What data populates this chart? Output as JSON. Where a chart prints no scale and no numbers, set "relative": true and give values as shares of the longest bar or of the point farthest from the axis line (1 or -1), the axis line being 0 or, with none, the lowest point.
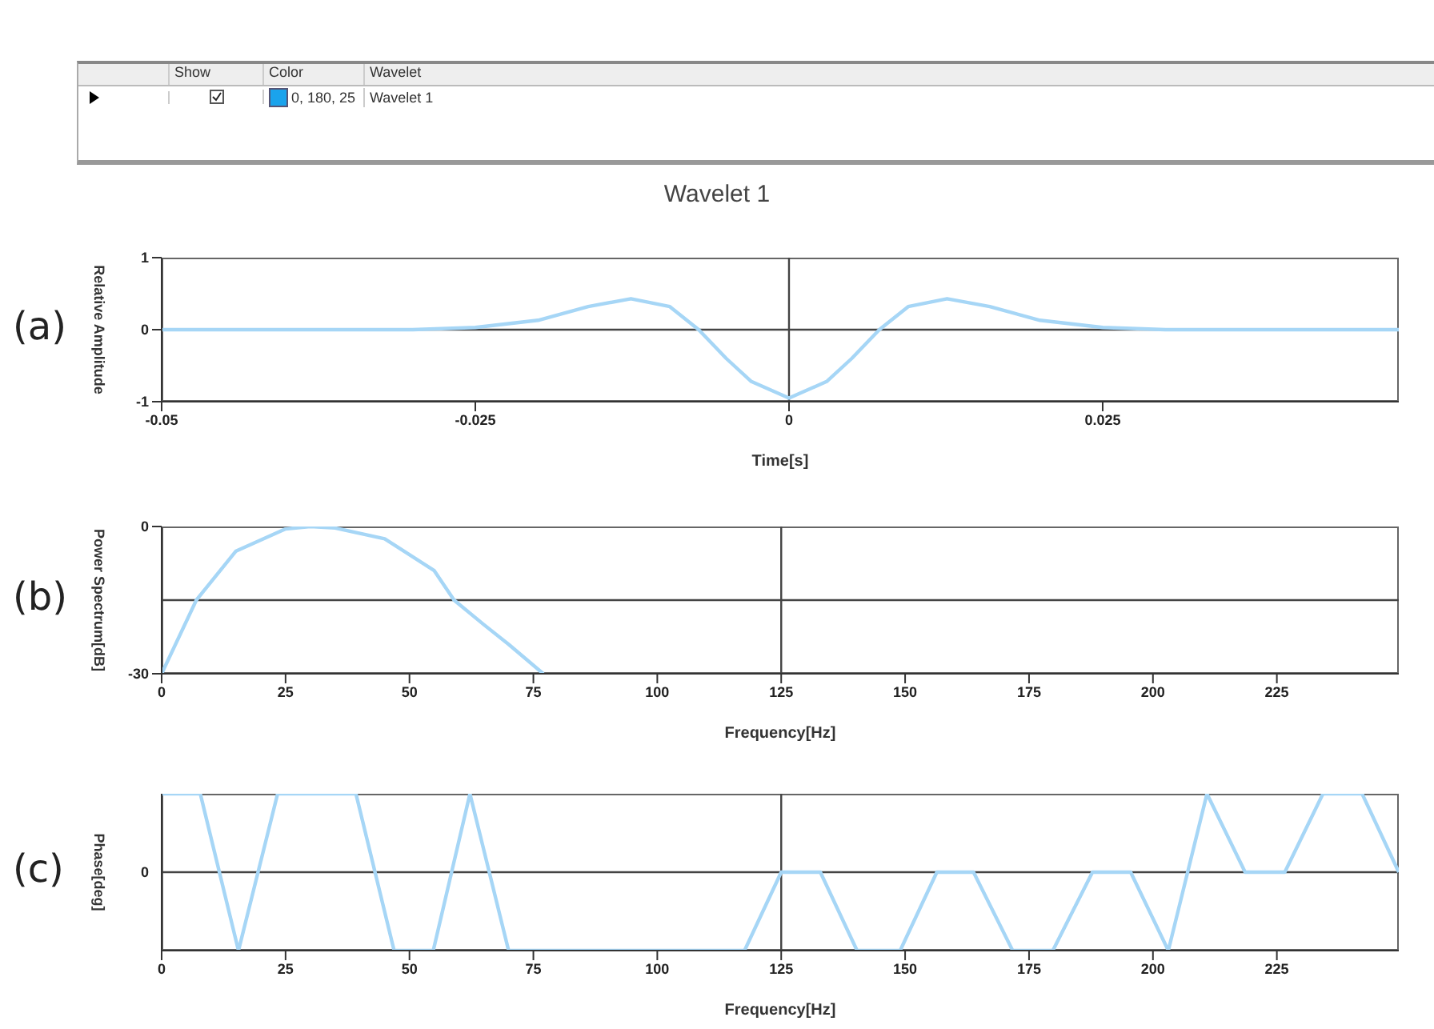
{
  "chart_data": [
    {
      "type": "other",
      "annotations": [
        "Show",
        "Color",
        "Wavelet",
        "0, 180, 25",
        "Wavelet 1"
      ],
      "colors": [
        "#1aa3ec"
      ]
    },
    {
      "type": "line",
      "title": "Wavelet 1",
      "xlabel": "Time[s]",
      "ylabel": "Relative Amplitude",
      "annotations": [
        "(a)"
      ],
      "x": [
        -0.05,
        -0.03,
        -0.025,
        -0.02,
        -0.016,
        -0.0126,
        -0.0095,
        -0.0072,
        -0.005,
        -0.003,
        0,
        0.003,
        0.005,
        0.0072,
        0.0095,
        0.0126,
        0.016,
        0.02,
        0.025,
        0.03,
        0.0486
      ],
      "series": [
        {
          "color": "#a6d6f6",
          "values": [
            0,
            0,
            0.03,
            0.13,
            0.32,
            0.43,
            0.32,
            0,
            -0.4,
            -0.72,
            -0.95,
            -0.72,
            -0.4,
            0,
            0.32,
            0.43,
            0.32,
            0.13,
            0.03,
            0,
            0
          ]
        }
      ],
      "xlim": [
        -0.05,
        0.0486
      ],
      "xticks": [
        -0.05,
        -0.025,
        0,
        0.025
      ],
      "ylim": [
        -1,
        1
      ],
      "yticks": [
        -1,
        0,
        1
      ],
      "ref_lines": [
        {
          "axis": "x",
          "value": 0,
          "color": "#444444"
        },
        {
          "axis": "y",
          "value": 0,
          "color": "#444444"
        }
      ]
    },
    {
      "type": "line",
      "xlabel": "Frequency[Hz]",
      "ylabel": "Power Spectrum[dB]",
      "annotations": [
        "(b)"
      ],
      "x": [
        0,
        7,
        15,
        25,
        30,
        35,
        45,
        55,
        59,
        65,
        70,
        77
      ],
      "series": [
        {
          "color": "#a6d6f6",
          "values": [
            -30,
            -15,
            -5,
            -0.5,
            0,
            -0.3,
            -2.5,
            -9,
            -15,
            -20,
            -24,
            -30
          ]
        }
      ],
      "xlim": [
        0,
        249.6
      ],
      "xticks": [
        0,
        25,
        50,
        75,
        100,
        125,
        150,
        175,
        200,
        225
      ],
      "ylim": [
        -30,
        0
      ],
      "yticks": [
        -30,
        0
      ],
      "ref_lines": [
        {
          "axis": "x",
          "value": 125,
          "color": "#444444"
        },
        {
          "axis": "y",
          "value": -15,
          "color": "#444444"
        }
      ]
    },
    {
      "type": "line",
      "xlabel": "Frequency[Hz]",
      "ylabel": "Phase[deg]",
      "annotations": [
        "(c)"
      ],
      "relative": true,
      "x": [
        0,
        7.8,
        15.5,
        23.4,
        39.2,
        46.9,
        54.8,
        62.2,
        70,
        117.6,
        125,
        132.9,
        140.3,
        149,
        156.4,
        163.8,
        171.7,
        179.8,
        187.8,
        195.5,
        203.1,
        210.9,
        218.6,
        226.6,
        234.3,
        242.2,
        249.6
      ],
      "series": [
        {
          "color": "#a6d6f6",
          "values": [
            1,
            1,
            -1,
            1,
            1,
            -1,
            -1,
            1,
            -1,
            -1,
            0,
            0,
            -1,
            -1,
            0,
            0,
            -1,
            -1,
            0,
            0,
            -1,
            1,
            0,
            0,
            1,
            1,
            0
          ]
        }
      ],
      "xlim": [
        0,
        249.6
      ],
      "xticks": [
        0,
        25,
        50,
        75,
        100,
        125,
        150,
        175,
        200,
        225
      ],
      "ref_lines": [
        {
          "axis": "x",
          "value": 125,
          "color": "#444444"
        },
        {
          "axis": "y",
          "value": 0,
          "label": "0",
          "color": "#444444"
        }
      ]
    }
  ]
}
